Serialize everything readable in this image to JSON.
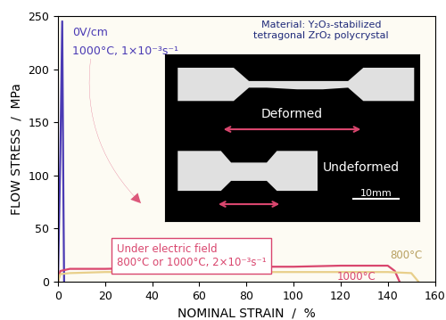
{
  "chart_data": {
    "type": "line",
    "xlabel": "NOMINAL STRAIN  /  %",
    "ylabel": "FLOW STRESS  /  MPa",
    "xlim": [
      0,
      160
    ],
    "xticks": [
      0,
      20,
      40,
      60,
      80,
      100,
      120,
      140,
      160
    ],
    "ylim": [
      0,
      250
    ],
    "yticks": [
      0,
      50,
      100,
      150,
      200,
      250
    ],
    "grid": false,
    "series": [
      {
        "name": "0V/cm",
        "color": "#4a3ab4",
        "x": [
          0,
          1,
          1.8,
          2.3,
          2.6
        ],
        "values": [
          0,
          120,
          245,
          80,
          0
        ]
      },
      {
        "name": "1000°C",
        "color": "#d9466e",
        "x": [
          0,
          1,
          5,
          20,
          40,
          60,
          80,
          100,
          120,
          140,
          143,
          145
        ],
        "values": [
          0,
          10,
          12,
          12,
          13,
          13,
          14,
          14,
          15,
          15,
          10,
          0
        ]
      },
      {
        "name": "800°C",
        "color": "#e8cf8a",
        "x": [
          0,
          1,
          5,
          20,
          40,
          60,
          80,
          100,
          120,
          140,
          150,
          153
        ],
        "values": [
          0,
          7,
          8,
          9,
          9,
          9,
          9,
          9,
          9,
          9,
          8,
          0
        ]
      }
    ],
    "annotations": [
      "1000°C, 1×10⁻³s⁻¹",
      "Under electric field",
      "800°C or 1000°C, 2×10⁻³s⁻¹"
    ],
    "inset": {
      "title": [
        "Material: Y₂O₃-stabilized",
        "tetragonal ZrO₂ polycrystal"
      ],
      "labels": [
        "Deformed",
        "Undeformed",
        "10mm"
      ]
    }
  }
}
